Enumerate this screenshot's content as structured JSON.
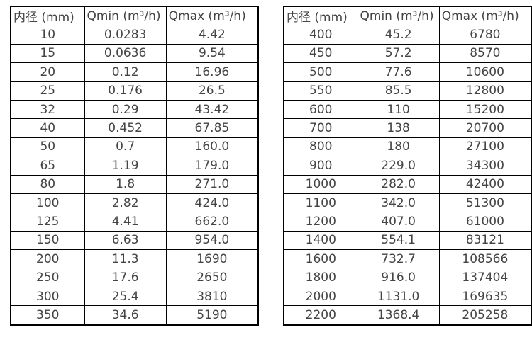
{
  "page": {
    "background": "#ffffff",
    "text_color": "#444444",
    "border_color": "#000000"
  },
  "tables": [
    {
      "columns": [
        "内径 (mm)",
        "Qmin (m³/h)",
        "Qmax (m³/h)"
      ],
      "rows": [
        [
          "10",
          "0.0283",
          "4.42"
        ],
        [
          "15",
          "0.0636",
          "9.54"
        ],
        [
          "20",
          "0.12",
          "16.96"
        ],
        [
          "25",
          "0.176",
          "26.5"
        ],
        [
          "32",
          "0.29",
          "43.42"
        ],
        [
          "40",
          "0.452",
          "67.85"
        ],
        [
          "50",
          "0.7",
          "160.0"
        ],
        [
          "65",
          "1.19",
          "179.0"
        ],
        [
          "80",
          "1.8",
          "271.0"
        ],
        [
          "100",
          "2.82",
          "424.0"
        ],
        [
          "125",
          "4.41",
          "662.0"
        ],
        [
          "150",
          "6.63",
          "954.0"
        ],
        [
          "200",
          "11.3",
          "1690"
        ],
        [
          "250",
          "17.6",
          "2650"
        ],
        [
          "300",
          "25.4",
          "3810"
        ],
        [
          "350",
          "34.6",
          "5190"
        ]
      ]
    },
    {
      "columns": [
        "内径 (mm)",
        "Qmin (m³/h)",
        "Qmax (m³/h)"
      ],
      "rows": [
        [
          "400",
          "45.2",
          "6780"
        ],
        [
          "450",
          "57.2",
          "8570"
        ],
        [
          "500",
          "77.6",
          "10600"
        ],
        [
          "550",
          "85.5",
          "12800"
        ],
        [
          "600",
          "110",
          "15200"
        ],
        [
          "700",
          "138",
          "20700"
        ],
        [
          "800",
          "180",
          "27100"
        ],
        [
          "900",
          "229.0",
          "34300"
        ],
        [
          "1000",
          "282.0",
          "42400"
        ],
        [
          "1100",
          "342.0",
          "51300"
        ],
        [
          "1200",
          "407.0",
          "61000"
        ],
        [
          "1400",
          "554.1",
          "83121"
        ],
        [
          "1600",
          "732.7",
          "108566"
        ],
        [
          "1800",
          "916.0",
          "137404"
        ],
        [
          "2000",
          "1131.0",
          "169635"
        ],
        [
          "2200",
          "1368.4",
          "205258"
        ]
      ]
    }
  ]
}
